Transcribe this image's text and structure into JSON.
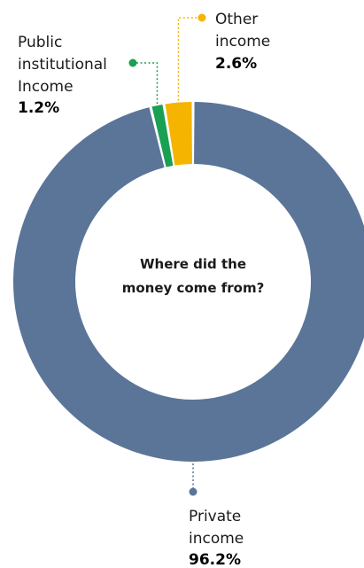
{
  "chart_data": {
    "type": "pie",
    "title": "Where did the money come from?",
    "title_lines": [
      "Where did the",
      "money come from?"
    ],
    "series": [
      {
        "name": "Private income",
        "name_lines": [
          "Private",
          "income"
        ],
        "value": 96.2,
        "value_label": "96.2%",
        "color": "#5b7599"
      },
      {
        "name": "Public institutional Income",
        "name_lines": [
          "Public",
          "institutional",
          "Income"
        ],
        "value": 1.2,
        "value_label": "1.2%",
        "color": "#1aa052"
      },
      {
        "name": "Other income",
        "name_lines": [
          "Other",
          "income"
        ],
        "value": 2.6,
        "value_label": "2.6%",
        "color": "#f5b400"
      }
    ]
  }
}
